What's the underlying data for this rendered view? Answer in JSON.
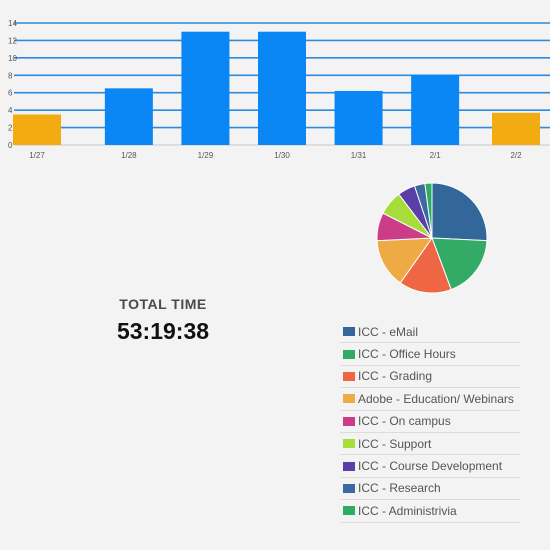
{
  "chart_data": [
    {
      "type": "bar",
      "categories": [
        "1/27",
        "1/28",
        "1/29",
        "1/30",
        "1/31",
        "2/1",
        "2/2"
      ],
      "values": [
        3.5,
        6.5,
        13,
        13,
        6.2,
        8,
        3.7
      ],
      "ylim": [
        0,
        14
      ],
      "yticks": [
        0,
        2,
        4,
        6,
        8,
        10,
        12,
        14
      ],
      "grid": true,
      "colors": {
        "bar": "#0a86f5",
        "edge_bar": "#f2ac12",
        "grid": "#2a8be0"
      }
    },
    {
      "type": "pie",
      "labels": [
        "ICC - eMail",
        "ICC - Office Hours",
        "ICC - Grading",
        "Adobe - Education/ Webinars",
        "ICC - On campus",
        "ICC - Support",
        "ICC - Course Development",
        "ICC - Research",
        "ICC - Administrivia"
      ],
      "values": [
        25,
        18,
        15,
        14,
        8,
        7,
        5,
        3,
        2
      ],
      "colors": [
        "#336699",
        "#33aa66",
        "#ee6644",
        "#eeaa44",
        "#cc3d88",
        "#a6dd3a",
        "#5b3fa8",
        "#3a6aa0",
        "#2eac62"
      ]
    }
  ],
  "total": {
    "label": "TOTAL TIME",
    "value": "53:19:38"
  }
}
